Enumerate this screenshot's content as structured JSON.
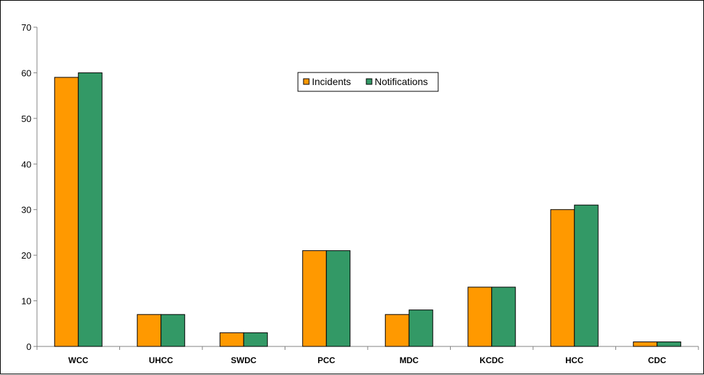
{
  "chart_data": {
    "type": "bar",
    "categories": [
      "WCC",
      "UHCC",
      "SWDC",
      "PCC",
      "MDC",
      "KCDC",
      "HCC",
      "CDC"
    ],
    "series": [
      {
        "name": "Incidents",
        "color": "#FF9900",
        "values": [
          59,
          7,
          3,
          21,
          7,
          13,
          30,
          1
        ]
      },
      {
        "name": "Notifications",
        "color": "#339966",
        "values": [
          60,
          7,
          3,
          21,
          8,
          13,
          31,
          1
        ]
      }
    ],
    "ylim": [
      0,
      70
    ],
    "yticks": [
      0,
      10,
      20,
      30,
      40,
      50,
      60,
      70
    ],
    "grid": false,
    "legend": "top-center"
  }
}
